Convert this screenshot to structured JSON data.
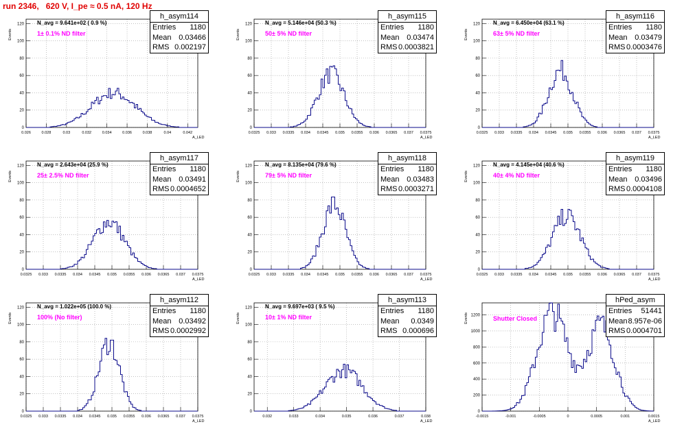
{
  "page_title": "run 2346,   620 V, I_pe ≈ 0.5 nA, 120 Hz",
  "chart_data": [
    {
      "type": "histogram",
      "hist_name": "h_asym114",
      "navg": "N_avg = 9.641e+02 ( 0.9 %)",
      "filter": "1± 0.1% ND filter",
      "entries": "1180",
      "mean": "0.03466",
      "rms": "0.002197",
      "xlim": [
        0.026,
        0.043
      ],
      "ylim": [
        0,
        125
      ],
      "yticks": [
        0,
        20,
        40,
        60,
        80,
        100,
        120
      ],
      "xticks": [
        "0.026",
        "0.028",
        "0.03",
        "0.032",
        "0.034",
        "0.036",
        "0.038",
        "0.04",
        "0.042"
      ],
      "xlabel": "A_LED",
      "ylabel": "Events",
      "mu": 0.03466,
      "sigma": 0.0022,
      "peak": 40
    },
    {
      "type": "histogram",
      "hist_name": "h_asym115",
      "navg": "N_avg = 5.146e+04 (50.3 %)",
      "filter": "50± 5% ND filter",
      "entries": "1180",
      "mean": "0.03474",
      "rms": "0.0003821",
      "xlim": [
        0.0325,
        0.0375
      ],
      "ylim": [
        0,
        125
      ],
      "yticks": [
        0,
        20,
        40,
        60,
        80,
        100,
        120
      ],
      "xticks": [
        "0.0325",
        "0.033",
        "0.0335",
        "0.034",
        "0.0345",
        "0.035",
        "0.0355",
        "0.036",
        "0.0365",
        "0.037",
        "0.0375"
      ],
      "xlabel": "A_LED",
      "ylabel": "Events",
      "mu": 0.03474,
      "sigma": 0.00038,
      "peak": 62
    },
    {
      "type": "histogram",
      "hist_name": "h_asym116",
      "navg": "N_avg = 6.450e+04 (63.1 %)",
      "filter": "63± 5% ND filter",
      "entries": "1180",
      "mean": "0.03479",
      "rms": "0.0003476",
      "xlim": [
        0.0325,
        0.0375
      ],
      "ylim": [
        0,
        125
      ],
      "yticks": [
        0,
        20,
        40,
        60,
        80,
        100,
        120
      ],
      "xticks": [
        "0.0325",
        "0.033",
        "0.0335",
        "0.034",
        "0.0345",
        "0.035",
        "0.0355",
        "0.036",
        "0.0365",
        "0.037",
        "0.0375"
      ],
      "xlabel": "A_LED",
      "ylabel": "Events",
      "mu": 0.03479,
      "sigma": 0.00035,
      "peak": 66
    },
    {
      "type": "histogram",
      "hist_name": "h_asym117",
      "navg": "N_avg = 2.643e+04 (25.9 %)",
      "filter": "25± 2.5% ND filter",
      "entries": "1180",
      "mean": "0.03491",
      "rms": "0.0004652",
      "xlim": [
        0.0325,
        0.0375
      ],
      "ylim": [
        0,
        125
      ],
      "yticks": [
        0,
        20,
        40,
        60,
        80,
        100,
        120
      ],
      "xticks": [
        "0.0325",
        "0.033",
        "0.0335",
        "0.034",
        "0.0345",
        "0.035",
        "0.0355",
        "0.036",
        "0.0365",
        "0.037",
        "0.0375"
      ],
      "xlabel": "A_LED",
      "ylabel": "Events",
      "mu": 0.03491,
      "sigma": 0.00046,
      "peak": 55
    },
    {
      "type": "histogram",
      "hist_name": "h_asym118",
      "navg": "N_avg = 8.135e+04 (79.6 %)",
      "filter": "79± 5% ND filter",
      "entries": "1180",
      "mean": "0.03483",
      "rms": "0.0003271",
      "xlim": [
        0.0325,
        0.0375
      ],
      "ylim": [
        0,
        125
      ],
      "yticks": [
        0,
        20,
        40,
        60,
        80,
        100,
        120
      ],
      "xticks": [
        "0.0325",
        "0.033",
        "0.0335",
        "0.034",
        "0.0345",
        "0.035",
        "0.0355",
        "0.036",
        "0.0365",
        "0.037",
        "0.0375"
      ],
      "xlabel": "A_LED",
      "ylabel": "Events",
      "mu": 0.03483,
      "sigma": 0.00033,
      "peak": 75
    },
    {
      "type": "histogram",
      "hist_name": "h_asym119",
      "navg": "N_avg = 4.145e+04 (40.6 %)",
      "filter": "40± 4% ND filter",
      "entries": "1180",
      "mean": "0.03496",
      "rms": "0.0004108",
      "xlim": [
        0.0325,
        0.0375
      ],
      "ylim": [
        0,
        125
      ],
      "yticks": [
        0,
        20,
        40,
        60,
        80,
        100,
        120
      ],
      "xticks": [
        "0.0325",
        "0.033",
        "0.0335",
        "0.034",
        "0.0345",
        "0.035",
        "0.0355",
        "0.036",
        "0.0365",
        "0.037",
        "0.0375"
      ],
      "xlabel": "A_LED",
      "ylabel": "Events",
      "mu": 0.03496,
      "sigma": 0.00041,
      "peak": 62
    },
    {
      "type": "histogram",
      "hist_name": "h_asym112",
      "navg": "N_avg = 1.022e+05 (100.0 %)",
      "filter": "100% (No filter)",
      "entries": "1180",
      "mean": "0.03492",
      "rms": "0.0002992",
      "xlim": [
        0.0325,
        0.0375
      ],
      "ylim": [
        0,
        125
      ],
      "yticks": [
        0,
        20,
        40,
        60,
        80,
        100,
        120
      ],
      "xticks": [
        "0.0325",
        "0.033",
        "0.0335",
        "0.034",
        "0.0345",
        "0.035",
        "0.0355",
        "0.036",
        "0.0365",
        "0.037",
        "0.0375"
      ],
      "xlabel": "A_LED",
      "ylabel": "Events",
      "mu": 0.03492,
      "sigma": 0.0003,
      "peak": 80
    },
    {
      "type": "histogram",
      "hist_name": "h_asym113",
      "navg": "N_avg = 9.697e+03 ( 9.5 %)",
      "filter": "10± 1% ND filter",
      "entries": "1180",
      "mean": "0.0349",
      "rms": "0.000696",
      "xlim": [
        0.0315,
        0.038
      ],
      "ylim": [
        0,
        125
      ],
      "yticks": [
        0,
        20,
        40,
        60,
        80,
        100,
        120
      ],
      "xticks": [
        "0.032",
        "0.033",
        "0.034",
        "0.035",
        "0.036",
        "0.037",
        "0.038"
      ],
      "xlabel": "A_LED",
      "ylabel": "Events",
      "mu": 0.0349,
      "sigma": 0.0007,
      "peak": 47
    },
    {
      "type": "histogram",
      "hist_name": "hPed_asym",
      "navg": "",
      "filter": "Shutter Closed",
      "entries": "51441",
      "mean": "8.957e-06",
      "rms": "0.0004701",
      "xlim": [
        -0.0015,
        0.0015
      ],
      "ylim": [
        0,
        1350
      ],
      "yticks": [
        0,
        200,
        400,
        600,
        800,
        1000,
        1200
      ],
      "xticks": [
        "-0.0015",
        "-0.001",
        "-0.0005",
        "0",
        "0.0005",
        "0.001",
        "0.0015"
      ],
      "xlabel": "A_LED",
      "ylabel": "Events",
      "bimodal": true,
      "peak": 1250
    }
  ]
}
